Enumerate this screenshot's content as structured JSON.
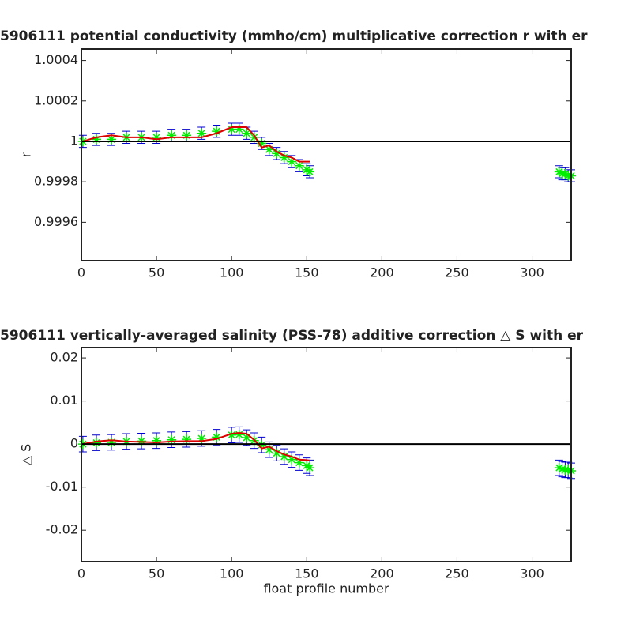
{
  "chart_data": [
    {
      "type": "errorbar",
      "title": "5906111 potential conductivity (mmho/cm) multiplicative correction r with er",
      "ylabel": "r",
      "xlim": [
        0,
        326
      ],
      "xticks": [
        0,
        50,
        100,
        150,
        200,
        250,
        300
      ],
      "ylim": [
        0.99941,
        1.000457
      ],
      "yticks": [
        0.9996,
        0.9998,
        1,
        1.0002,
        1.0004
      ],
      "reference": 1,
      "reference_color": "#000000",
      "x": [
        1,
        10,
        20,
        30,
        40,
        50,
        60,
        70,
        80,
        90,
        100,
        105,
        110,
        115,
        120,
        125,
        130,
        135,
        140,
        145,
        150,
        152,
        318,
        320,
        322,
        324,
        326
      ],
      "series": [
        {
          "color": "#00ee00",
          "error_color": "#0000cc",
          "values": [
            1.0,
            1.00001,
            1.00001,
            1.00002,
            1.00002,
            1.00002,
            1.00003,
            1.00003,
            1.00004,
            1.00005,
            1.00006,
            1.00006,
            1.00004,
            1.00002,
            0.99999,
            0.99996,
            0.99994,
            0.99992,
            0.9999,
            0.99988,
            0.99986,
            0.99985,
            0.99985,
            0.99984,
            0.99984,
            0.99983,
            0.99983
          ],
          "errors": [
            3e-05,
            3e-05,
            3e-05,
            3e-05,
            3e-05,
            3e-05,
            3e-05,
            3e-05,
            3e-05,
            3e-05,
            3e-05,
            3e-05,
            3e-05,
            3e-05,
            3e-05,
            3e-05,
            3e-05,
            3e-05,
            3e-05,
            3e-05,
            3e-05,
            3e-05,
            3e-05,
            3e-05,
            3e-05,
            3e-05,
            3e-05
          ]
        },
        {
          "color": "#dd0000",
          "values": [
            1.0,
            1.00002,
            1.00003,
            1.00002,
            1.00002,
            1.00001,
            1.00002,
            1.00002,
            1.00002,
            1.00004,
            1.00007,
            1.00007,
            1.00007,
            1.00003,
            0.99997,
            0.99998,
            0.99995,
            0.99993,
            0.99992,
            0.9999,
            0.9999,
            0.9999,
            null,
            null,
            null,
            null,
            null
          ]
        }
      ]
    },
    {
      "type": "errorbar",
      "title": "5906111 vertically-averaged salinity (PSS-78) additive correction △ S with er",
      "ylabel": "△ S",
      "xlabel": "float profile number",
      "xlim": [
        0,
        326
      ],
      "xticks": [
        0,
        50,
        100,
        150,
        200,
        250,
        300
      ],
      "ylim": [
        -0.0273,
        0.0224
      ],
      "yticks": [
        -0.02,
        -0.01,
        0,
        0.01,
        0.02
      ],
      "reference": 0,
      "reference_color": "#000000",
      "x": [
        1,
        10,
        20,
        30,
        40,
        50,
        60,
        70,
        80,
        90,
        100,
        105,
        110,
        115,
        120,
        125,
        130,
        135,
        140,
        145,
        150,
        152,
        318,
        320,
        322,
        324,
        326
      ],
      "series": [
        {
          "color": "#00ee00",
          "error_color": "#0000cc",
          "values": [
            0,
            0.0003,
            0.0004,
            0.0006,
            0.0007,
            0.0008,
            0.001,
            0.0011,
            0.0013,
            0.0016,
            0.0021,
            0.0022,
            0.0015,
            0.0008,
            -0.0002,
            -0.0013,
            -0.0021,
            -0.0029,
            -0.0036,
            -0.0043,
            -0.005,
            -0.0055,
            -0.0055,
            -0.0058,
            -0.006,
            -0.006,
            -0.0062
          ],
          "errors": [
            0.0018,
            0.0018,
            0.0018,
            0.0018,
            0.0018,
            0.0018,
            0.0018,
            0.0018,
            0.0018,
            0.0018,
            0.0018,
            0.0018,
            0.0018,
            0.0018,
            0.0018,
            0.0018,
            0.0018,
            0.0018,
            0.0018,
            0.0018,
            0.0018,
            0.0018,
            0.0018,
            0.0018,
            0.0018,
            0.0018,
            0.0018
          ]
        },
        {
          "color": "#dd0000",
          "values": [
            0,
            0.0006,
            0.0009,
            0.0006,
            0.0005,
            0.0004,
            0.0006,
            0.0007,
            0.0007,
            0.0012,
            0.0024,
            0.0026,
            0.0024,
            0.001,
            -0.001,
            -0.0006,
            -0.0016,
            -0.0024,
            -0.0029,
            -0.0036,
            -0.0037,
            -0.0038,
            null,
            null,
            null,
            null,
            null
          ]
        }
      ]
    }
  ]
}
